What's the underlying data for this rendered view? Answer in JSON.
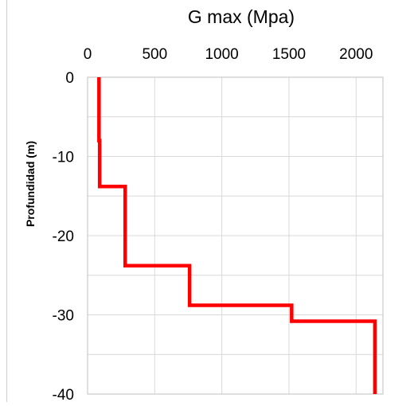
{
  "chart_data": {
    "type": "line",
    "title": "G max (Mpa)",
    "xlabel": "",
    "ylabel": "Profundidad (m)",
    "xlim": [
      0,
      2200
    ],
    "ylim": [
      -40,
      0
    ],
    "xticks": [
      0,
      500,
      1000,
      1500,
      2000
    ],
    "yticks": [
      0,
      -10,
      -20,
      -30,
      -40
    ],
    "x_axis_position": "top",
    "grid": true,
    "series": [
      {
        "name": "",
        "color": "#ff0000",
        "points": [
          {
            "x": 85,
            "y": 0
          },
          {
            "x": 85,
            "y": -8
          },
          {
            "x": 90,
            "y": -8
          },
          {
            "x": 90,
            "y": -13.8
          },
          {
            "x": 280,
            "y": -13.8
          },
          {
            "x": 280,
            "y": -23.8
          },
          {
            "x": 760,
            "y": -23.8
          },
          {
            "x": 760,
            "y": -28.8
          },
          {
            "x": 1520,
            "y": -28.8
          },
          {
            "x": 1520,
            "y": -30.8
          },
          {
            "x": 2140,
            "y": -30.8
          },
          {
            "x": 2140,
            "y": -40
          }
        ]
      }
    ]
  }
}
